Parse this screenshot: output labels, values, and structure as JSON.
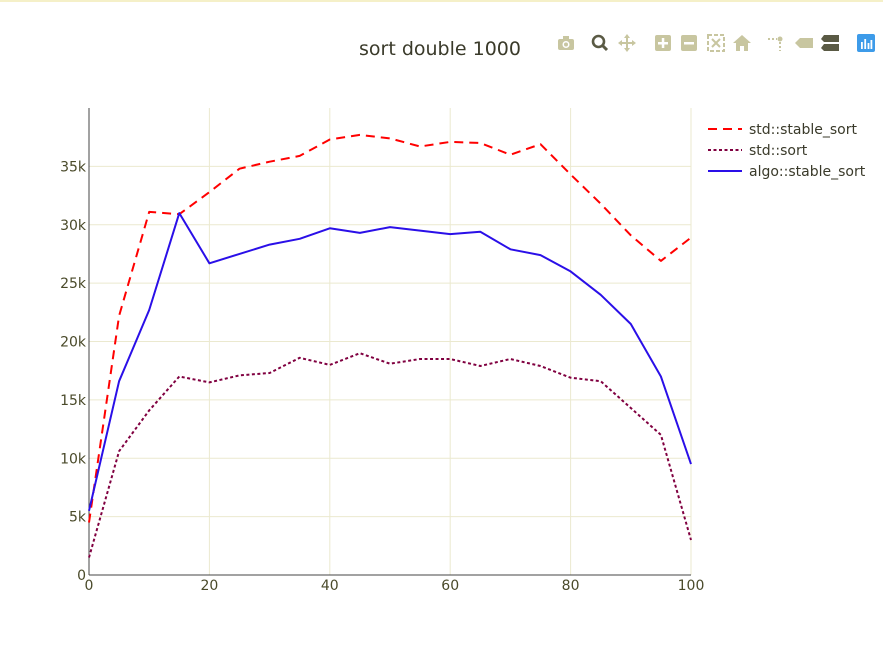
{
  "modebar": {
    "icons": [
      "camera-icon",
      "zoom-icon",
      "pan-icon",
      "zoom-in-icon",
      "zoom-out-icon",
      "autoscale-icon",
      "home-icon",
      "spike-icon",
      "hover-closest-icon",
      "hover-compare-icon",
      "plotly-logo-icon"
    ]
  },
  "chart_data": {
    "type": "line",
    "title": "sort double 1000",
    "xlabel": "",
    "ylabel": "",
    "xlim": [
      0,
      100
    ],
    "ylim": [
      0,
      40000
    ],
    "x_ticks": [
      0,
      20,
      40,
      60,
      80,
      100
    ],
    "x_tick_labels": [
      "0",
      "20",
      "40",
      "60",
      "80",
      "100"
    ],
    "y_ticks": [
      0,
      5000,
      10000,
      15000,
      20000,
      25000,
      30000,
      35000
    ],
    "y_tick_labels": [
      "0",
      "5k",
      "10k",
      "15k",
      "20k",
      "25k",
      "30k",
      "35k"
    ],
    "grid": true,
    "legend_position": "top-right",
    "x": [
      0,
      5,
      10,
      15,
      20,
      25,
      30,
      35,
      40,
      45,
      50,
      55,
      60,
      65,
      70,
      75,
      80,
      85,
      90,
      95,
      100
    ],
    "series": [
      {
        "name": "std::stable_sort",
        "color": "#ff0000",
        "dash": "dashed",
        "values": [
          4500,
          22200,
          31100,
          30900,
          32800,
          34800,
          35400,
          35900,
          37300,
          37700,
          37400,
          36700,
          37100,
          37000,
          36000,
          36900,
          34300,
          31800,
          29100,
          26900,
          28900
        ]
      },
      {
        "name": "std::sort",
        "color": "#800040",
        "dash": "dotted",
        "values": [
          1500,
          10600,
          14100,
          17000,
          16500,
          17100,
          17300,
          18600,
          18000,
          19000,
          18100,
          18500,
          18500,
          17900,
          18500,
          17900,
          16900,
          16600,
          14300,
          12000,
          3000
        ]
      },
      {
        "name": "algo::stable_sort",
        "color": "#2a0fe8",
        "dash": "solid",
        "values": [
          5500,
          16600,
          22700,
          31000,
          26700,
          27500,
          28300,
          28800,
          29700,
          29300,
          29800,
          29500,
          29200,
          29400,
          27900,
          27400,
          26000,
          24000,
          21500,
          17000,
          9500
        ]
      }
    ]
  }
}
